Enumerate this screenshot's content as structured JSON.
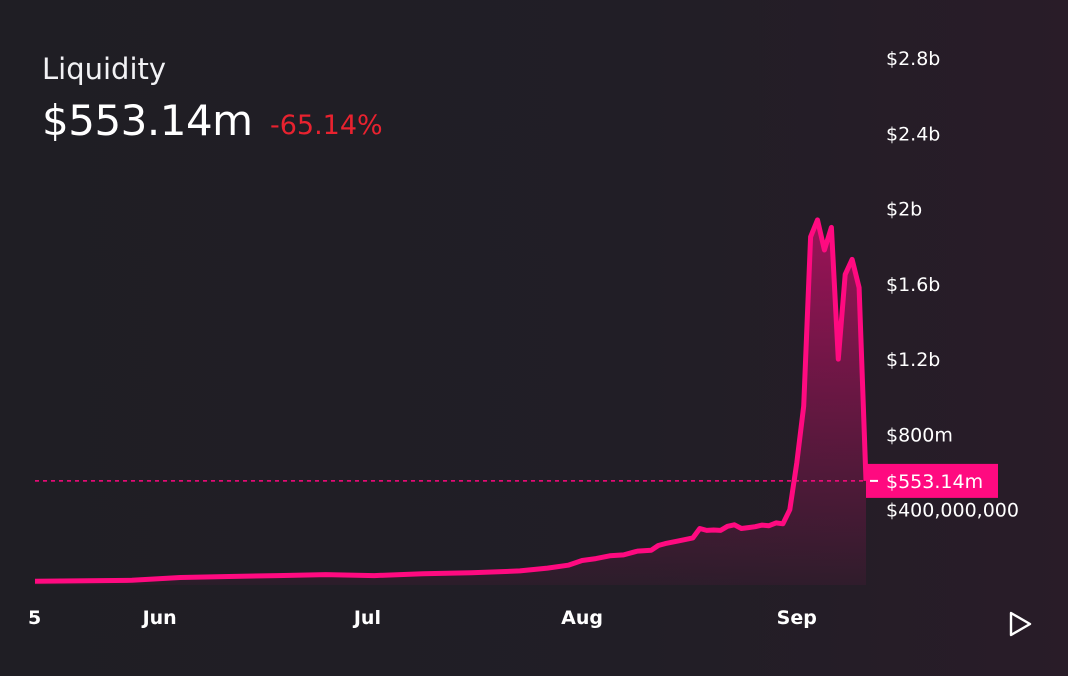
{
  "header": {
    "title": "Liquidity",
    "value": "$553.14m",
    "change": "-65.14%"
  },
  "colors": {
    "background": "#1f1d24",
    "line": "#ff0a80",
    "negative": "#e8222f",
    "text": "#ffffff"
  },
  "icons": {
    "play": "play-icon"
  },
  "chart_data": {
    "type": "area",
    "ylim": [
      0,
      2800000000
    ],
    "y_ticks": [
      {
        "value": 2800000000,
        "label": "$2.8b"
      },
      {
        "value": 2400000000,
        "label": "$2.4b"
      },
      {
        "value": 2000000000,
        "label": "$2b"
      },
      {
        "value": 1600000000,
        "label": "$1.6b"
      },
      {
        "value": 1200000000,
        "label": "$1.2b"
      },
      {
        "value": 800000000,
        "label": "$800m"
      },
      {
        "value": 400000000,
        "label": "$400,000,000"
      }
    ],
    "x_ticks": [
      {
        "date": "2023-05-14",
        "label": "5"
      },
      {
        "date": "2023-06-01",
        "label": "Jun"
      },
      {
        "date": "2023-07-01",
        "label": "Jul"
      },
      {
        "date": "2023-08-01",
        "label": "Aug"
      },
      {
        "date": "2023-09-01",
        "label": "Sep"
      }
    ],
    "current": {
      "value": 553140000,
      "label": "$553.14m"
    },
    "x": [
      "2023-05-14",
      "2023-05-28",
      "2023-06-04",
      "2023-06-11",
      "2023-06-18",
      "2023-06-25",
      "2023-07-02",
      "2023-07-09",
      "2023-07-16",
      "2023-07-23",
      "2023-07-27",
      "2023-07-30",
      "2023-08-01",
      "2023-08-03",
      "2023-08-05",
      "2023-08-07",
      "2023-08-09",
      "2023-08-11",
      "2023-08-12",
      "2023-08-13",
      "2023-08-15",
      "2023-08-17",
      "2023-08-18",
      "2023-08-19",
      "2023-08-20",
      "2023-08-21",
      "2023-08-22",
      "2023-08-23",
      "2023-08-24",
      "2023-08-25",
      "2023-08-26",
      "2023-08-27",
      "2023-08-28",
      "2023-08-29",
      "2023-08-30",
      "2023-08-31",
      "2023-09-01",
      "2023-09-02",
      "2023-09-03",
      "2023-09-04",
      "2023-09-05",
      "2023-09-06",
      "2023-09-07",
      "2023-09-08"
    ],
    "values": [
      20000000,
      25000000,
      40000000,
      45000000,
      50000000,
      55000000,
      50000000,
      60000000,
      65000000,
      75000000,
      90000000,
      105000000,
      130000000,
      140000000,
      155000000,
      160000000,
      180000000,
      185000000,
      210000000,
      220000000,
      235000000,
      250000000,
      300000000,
      290000000,
      292000000,
      290000000,
      312000000,
      320000000,
      300000000,
      305000000,
      310000000,
      318000000,
      315000000,
      330000000,
      325000000,
      400000000,
      650000000,
      950000000,
      1850000000,
      1940000000,
      1780000000,
      1900000000,
      1200000000,
      1650000000
    ],
    "values_tail": [
      1730000000,
      1580000000,
      553140000
    ],
    "x_tail": [
      "2023-09-09",
      "2023-09-10",
      "2023-09-11"
    ]
  }
}
